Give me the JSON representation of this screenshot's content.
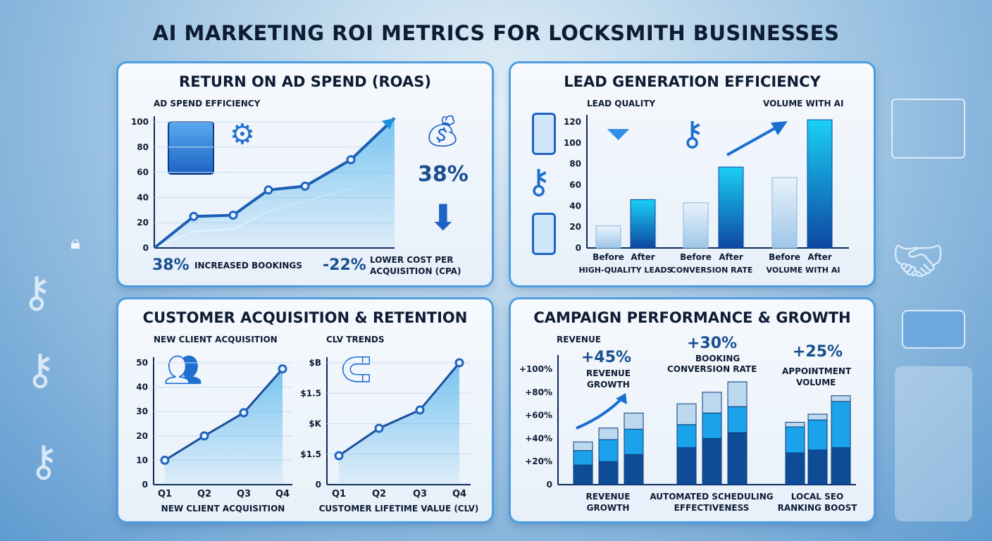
{
  "title": "AI MARKETING ROI METRICS FOR LOCKSMITH BUSINESSES",
  "colors": {
    "accent": "#1565c0",
    "light": "#29b6f6",
    "dark": "#0d2a5c"
  },
  "roas": {
    "title": "RETURN ON AD SPEND (ROAS)",
    "subtitle": "AD SPEND EFFICIENCY",
    "big_stat": "38%",
    "bookings_value": "38%",
    "bookings_label": "INCREASED BOOKINGS",
    "cpa_value": "-22%",
    "cpa_label_1": "LOWER COST PER",
    "cpa_label_2": "ACQUISITION (CPA)",
    "icons": [
      "safe-icon",
      "gears-icon",
      "money-bag-icon",
      "down-arrow-icon"
    ]
  },
  "lead": {
    "title": "LEAD GENERATION EFFICIENCY",
    "subtitle_left": "LEAD QUALITY",
    "subtitle_right": "VOLUME WITH AI",
    "icons": [
      "phone-lock-icon",
      "key-icon",
      "phone-gear-icon",
      "funnel-icon",
      "keys-icon"
    ]
  },
  "cust": {
    "title": "CUSTOMER ACQUISITION & RETENTION",
    "left_subtitle": "NEW CLIENT ACQUISITION",
    "right_subtitle": "CLV TRENDS",
    "icons": [
      "users-icon",
      "magnet-key-icon"
    ]
  },
  "camp": {
    "title": "CAMPAIGN PERFORMANCE & GROWTH",
    "ylabel": "REVENUE",
    "stats": [
      {
        "value": "+45%",
        "label_1": "REVENUE",
        "label_2": "GROWTH"
      },
      {
        "value": "+30%",
        "label_1": "BOOKING",
        "label_2": "CONVERSION RATE"
      },
      {
        "value": "+25%",
        "label_1": "APPOINTMENT",
        "label_2": "VOLUME"
      }
    ]
  },
  "chart_data": [
    {
      "type": "line",
      "title": "AD SPEND EFFICIENCY",
      "ylim": [
        0,
        100
      ],
      "yticks": [
        "0",
        "20",
        "40",
        "60",
        "80",
        "100"
      ],
      "grid": true,
      "series": [
        {
          "values": [
            0,
            25,
            26,
            46,
            49,
            70,
            103
          ]
        },
        {
          "values": [
            0,
            13,
            15,
            29,
            37,
            47,
            59
          ]
        }
      ]
    },
    {
      "type": "bar",
      "ylim": [
        0,
        120
      ],
      "yticks": [
        "0",
        "20",
        "40",
        "60",
        "80",
        "100",
        "120"
      ],
      "categories": [
        "Before",
        "After",
        "Before",
        "After",
        "Before",
        "After"
      ],
      "group_labels": [
        "HIGH-QUALITY LEADS",
        "CONVERSION RATE",
        "VOLUME WITH AI"
      ],
      "values": [
        21,
        46,
        43,
        77,
        67,
        122
      ]
    },
    {
      "type": "line",
      "title": "NEW CLIENT ACQUISITION",
      "xlabel": "NEW CLIENT ACQUISITION",
      "categories": [
        "Q1",
        "Q2",
        "Q3",
        "Q4"
      ],
      "ylim": [
        0,
        50
      ],
      "yticks": [
        "0",
        "10",
        "20",
        "30",
        "40",
        "50"
      ],
      "values": [
        10,
        20,
        29.5,
        47.5
      ]
    },
    {
      "type": "line",
      "title": "CLV TRENDS",
      "xlabel": "CUSTOMER LIFETIME VALUE (CLV)",
      "categories": [
        "Q1",
        "Q2",
        "Q3",
        "Q4"
      ],
      "yticks": [
        "0",
        "$1.5",
        "$K",
        "$1.5",
        "$B"
      ],
      "values": [
        0.95,
        1.85,
        2.45,
        4
      ]
    },
    {
      "type": "bar",
      "stacked": true,
      "ylim": [
        0,
        100
      ],
      "yticks": [
        "0",
        "+20%",
        "+40%",
        "+60%",
        "+80%",
        "+100%"
      ],
      "group_labels": [
        [
          "REVENUE",
          "GROWTH"
        ],
        [
          "AUTOMATED SCHEDULING",
          "EFFECTIVENESS"
        ],
        [
          "LOCAL SEO",
          "RANKING BOOST"
        ]
      ],
      "bars": [
        [
          17,
          12.5,
          7.5
        ],
        [
          20,
          19,
          10
        ],
        [
          26,
          22,
          14
        ],
        [
          32,
          20,
          18
        ],
        [
          40,
          22,
          18
        ],
        [
          45,
          22.5,
          21.5
        ],
        [
          27.5,
          22.5,
          4
        ],
        [
          30,
          26,
          5
        ],
        [
          32,
          40,
          5
        ]
      ]
    }
  ]
}
